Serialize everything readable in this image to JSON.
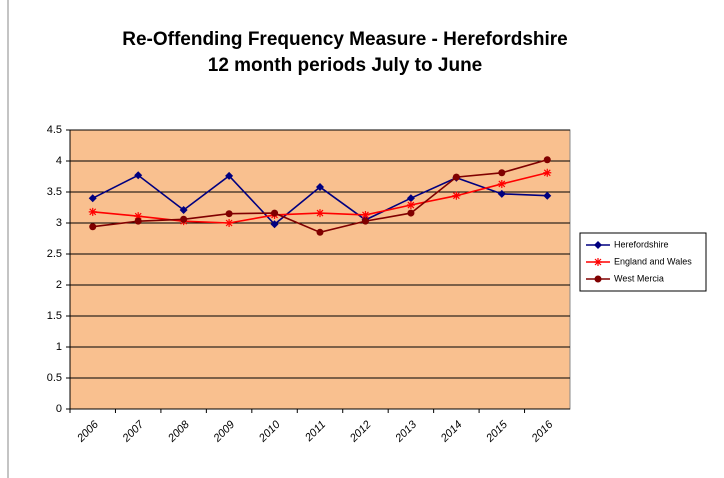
{
  "chart_data": {
    "type": "line",
    "title": "Re-Offending Frequency Measure - Herefordshire",
    "subtitle": "12 month periods July to June",
    "categories": [
      "2006",
      "2007",
      "2008",
      "2009",
      "2010",
      "2011",
      "2012",
      "2013",
      "2014",
      "2015",
      "2016"
    ],
    "series": [
      {
        "name": "Herefordshire",
        "color": "#000080",
        "marker": "diamond",
        "values": [
          3.4,
          3.77,
          3.21,
          3.76,
          2.98,
          3.58,
          3.05,
          3.4,
          3.73,
          3.47,
          3.44
        ]
      },
      {
        "name": "England and Wales",
        "color": "#ff0000",
        "marker": "asterisk",
        "values": [
          3.18,
          3.11,
          3.03,
          3.0,
          3.13,
          3.16,
          3.13,
          3.29,
          3.44,
          3.63,
          3.81
        ]
      },
      {
        "name": "West Mercia",
        "color": "#800000",
        "marker": "circle",
        "values": [
          2.94,
          3.03,
          3.06,
          3.15,
          3.16,
          2.85,
          3.03,
          3.16,
          3.74,
          3.81,
          4.02
        ]
      }
    ],
    "ylim": [
      0,
      4.5
    ],
    "yticks": [
      0,
      0.5,
      1,
      1.5,
      2,
      2.5,
      3,
      3.5,
      4,
      4.5
    ],
    "grid": true,
    "legend": "right",
    "plot_background": "#f9c08f"
  }
}
